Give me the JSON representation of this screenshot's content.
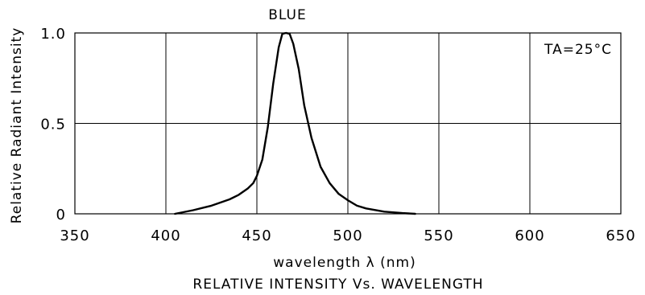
{
  "chart_data": {
    "type": "line",
    "series_label": "BLUE",
    "annotation": "TA=25°C",
    "xlabel": "wavelength λ (nm)",
    "ylabel": "Relative Radiant Intensity",
    "caption": "RELATIVE INTENSITY Vs. WAVELENGTH",
    "xlim": [
      350,
      650
    ],
    "ylim": [
      0,
      1.0
    ],
    "x_ticks": [
      350,
      400,
      450,
      500,
      550,
      600,
      650
    ],
    "y_ticks": [
      {
        "value": 0,
        "label": "0"
      },
      {
        "value": 0.5,
        "label": "0.5"
      },
      {
        "value": 1.0,
        "label": "1.0"
      }
    ],
    "grid": true,
    "series": [
      {
        "x": [
          405,
          415,
          425,
          435,
          440,
          445,
          448,
          450,
          453,
          456,
          459,
          462,
          464,
          466,
          468,
          470,
          473,
          476,
          480,
          485,
          490,
          495,
          500,
          505,
          510,
          520,
          530,
          537
        ],
        "y": [
          0,
          0.02,
          0.045,
          0.08,
          0.105,
          0.14,
          0.17,
          0.21,
          0.3,
          0.48,
          0.72,
          0.92,
          0.995,
          1.0,
          0.995,
          0.94,
          0.8,
          0.6,
          0.42,
          0.26,
          0.17,
          0.11,
          0.075,
          0.045,
          0.03,
          0.012,
          0.004,
          0
        ]
      }
    ]
  }
}
